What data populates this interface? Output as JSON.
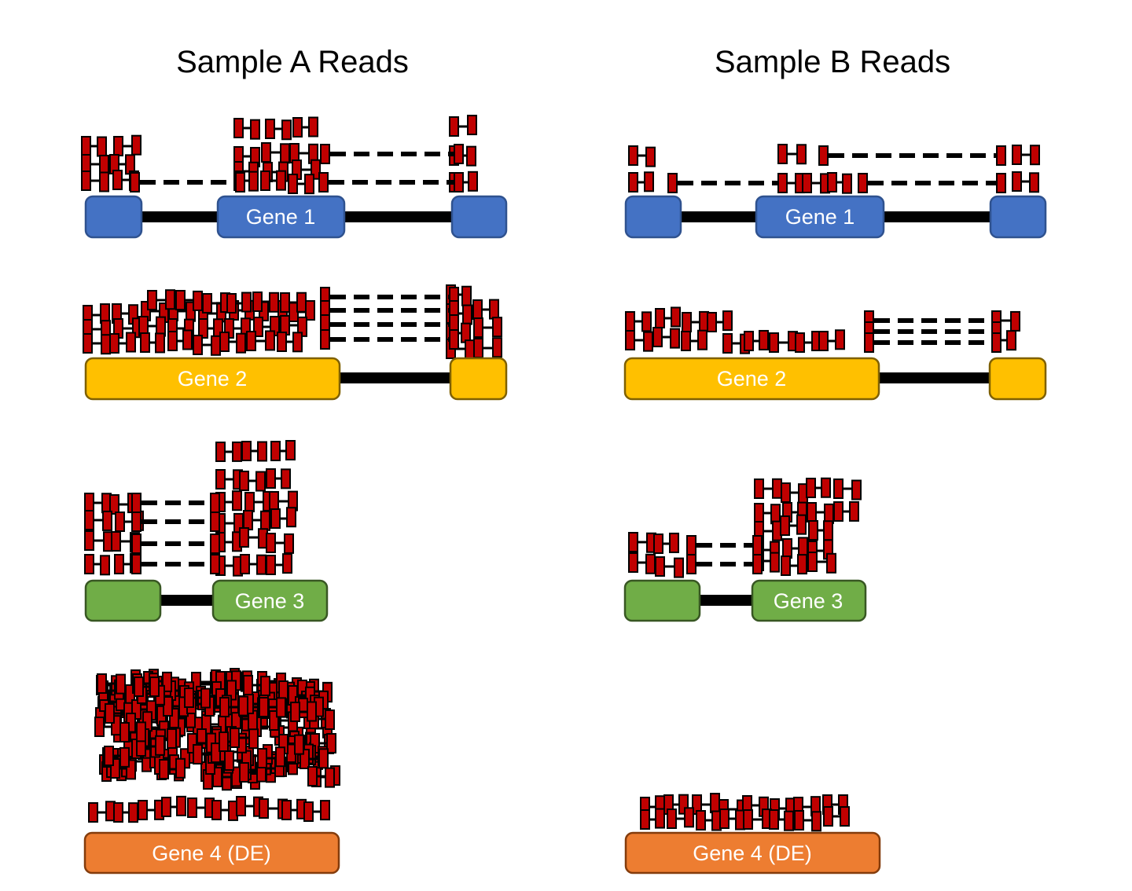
{
  "colors": {
    "gene1": "#4472c4",
    "gene1_border": "#2f528f",
    "gene2": "#ffc000",
    "gene2_border": "#7f6000",
    "gene3": "#70ad47",
    "gene3_border": "#385723",
    "gene4": "#ed7d31",
    "gene4_border": "#843c0c",
    "read": "#c00000"
  },
  "samples": [
    {
      "title": "Sample A Reads",
      "genes": [
        {
          "label": "Gene 1",
          "color_key": "gene1",
          "read_depth": "medium",
          "spliced": true
        },
        {
          "label": "Gene 2",
          "color_key": "gene2",
          "read_depth": "high",
          "spliced": true
        },
        {
          "label": "Gene 3",
          "color_key": "gene3",
          "read_depth": "high",
          "spliced": true
        },
        {
          "label": "Gene 4 (DE)",
          "color_key": "gene4",
          "read_depth": "very high",
          "spliced": false
        }
      ]
    },
    {
      "title": "Sample B Reads",
      "genes": [
        {
          "label": "Gene 1",
          "color_key": "gene1",
          "read_depth": "low",
          "spliced": true
        },
        {
          "label": "Gene 2",
          "color_key": "gene2",
          "read_depth": "medium",
          "spliced": true
        },
        {
          "label": "Gene 3",
          "color_key": "gene3",
          "read_depth": "medium",
          "spliced": true
        },
        {
          "label": "Gene 4 (DE)",
          "color_key": "gene4",
          "read_depth": "low",
          "spliced": false
        }
      ]
    }
  ]
}
